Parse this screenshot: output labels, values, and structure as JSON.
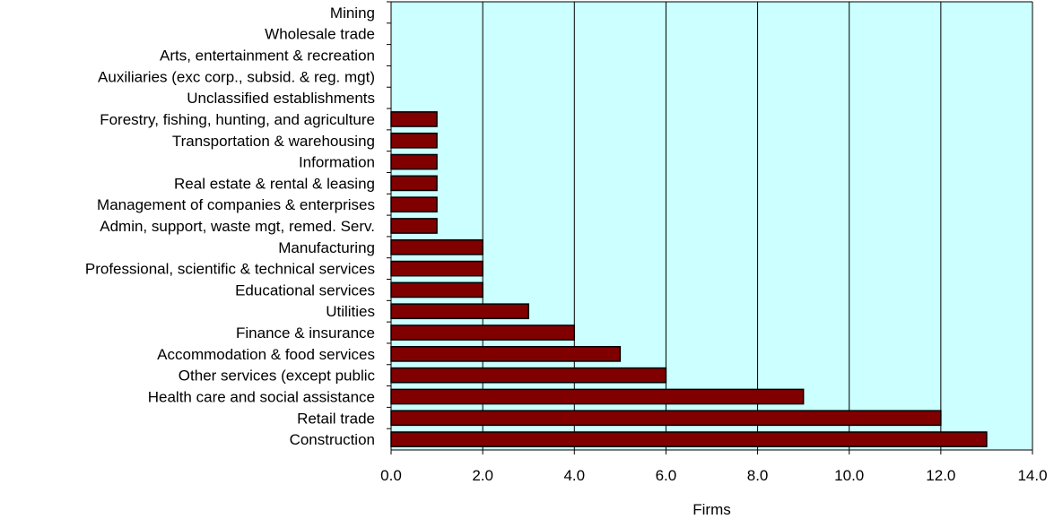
{
  "chart_data": {
    "type": "bar",
    "orientation": "horizontal",
    "categories": [
      "Mining",
      "Wholesale trade",
      "Arts, entertainment & recreation",
      "Auxiliaries (exc corp., subsid. & reg. mgt)",
      "Unclassified establishments",
      "Forestry, fishing, hunting, and agriculture",
      "Transportation & warehousing",
      "Information",
      "Real estate & rental & leasing",
      "Management of companies & enterprises",
      "Admin, support, waste mgt, remed. Serv.",
      "Manufacturing",
      "Professional, scientific & technical services",
      "Educational services",
      "Utilities",
      "Finance & insurance",
      "Accommodation & food services",
      "Other services (except public",
      "Health care and social assistance",
      "Retail trade",
      "Construction"
    ],
    "values": [
      0,
      0,
      0,
      0,
      0,
      1,
      1,
      1,
      1,
      1,
      1,
      2,
      2,
      2,
      3,
      4,
      5,
      6,
      9,
      12,
      13
    ],
    "xlabel": "Firms",
    "xlim": [
      0,
      14
    ],
    "xticks": [
      "0.0",
      "2.0",
      "4.0",
      "6.0",
      "8.0",
      "10.0",
      "12.0",
      "14.0"
    ],
    "grid": "vertical",
    "colors": {
      "plot_background": "#ccffff",
      "bar_fill": "#800000",
      "bar_stroke": "#000000",
      "grid": "#000000"
    }
  }
}
